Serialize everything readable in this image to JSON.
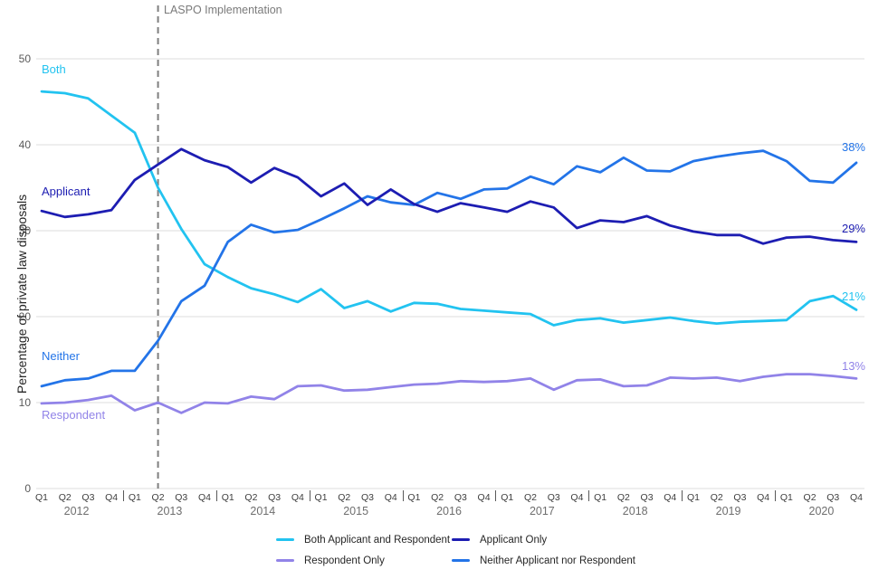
{
  "annotation": {
    "label": "LASPO Implementation"
  },
  "colors": {
    "both": "#22c3f0",
    "applicant": "#1d1db2",
    "respondent": "#9183e8",
    "neither": "#2374e8",
    "grid": "#dcdcdc",
    "dashed_line": "#7f7f7f"
  },
  "y_axis": {
    "title": "Percentage of private law disposals",
    "ticks": [
      0,
      10,
      20,
      30,
      40,
      50
    ]
  },
  "x_axis": {
    "years": [
      "2012",
      "2013",
      "2014",
      "2015",
      "2016",
      "2017",
      "2018",
      "2019",
      "2020"
    ]
  },
  "series_labels": {
    "both": "Both",
    "applicant": "Applicant",
    "neither": "Neither",
    "respondent": "Respondent"
  },
  "end_labels": {
    "neither": "38%",
    "applicant": "29%",
    "both": "21%",
    "respondent": "13%"
  },
  "legend": {
    "rows": 2,
    "columns": 2
  },
  "chart_data": {
    "type": "line",
    "title": "",
    "xlabel": "",
    "ylabel": "Percentage of private law disposals",
    "ylim": [
      0,
      50
    ],
    "grid": "horizontal",
    "legend_position": "bottom",
    "annotation": {
      "label": "LASPO Implementation",
      "x": "Q2 2013"
    },
    "x_categories": [
      "Q1 2012",
      "Q2 2012",
      "Q3 2012",
      "Q4 2012",
      "Q1 2013",
      "Q2 2013",
      "Q3 2013",
      "Q4 2013",
      "Q1 2014",
      "Q2 2014",
      "Q3 2014",
      "Q4 2014",
      "Q1 2015",
      "Q2 2015",
      "Q3 2015",
      "Q4 2015",
      "Q1 2016",
      "Q2 2016",
      "Q3 2016",
      "Q4 2016",
      "Q1 2017",
      "Q2 2017",
      "Q3 2017",
      "Q4 2017",
      "Q1 2018",
      "Q2 2018",
      "Q3 2018",
      "Q4 2018",
      "Q1 2019",
      "Q2 2019",
      "Q3 2019",
      "Q4 2019",
      "Q1 2020",
      "Q2 2020",
      "Q3 2020",
      "Q4 2020"
    ],
    "series": [
      {
        "key": "both",
        "label": "Both Applicant and Respondent",
        "values": [
          46.2,
          46.0,
          45.4,
          43.4,
          41.4,
          35.0,
          30.2,
          26.1,
          24.6,
          23.3,
          22.6,
          21.7,
          23.2,
          21.0,
          21.8,
          20.6,
          21.6,
          21.5,
          20.9,
          20.7,
          20.5,
          20.3,
          19.0,
          19.6,
          19.8,
          19.3,
          19.6,
          19.9,
          19.5,
          19.2,
          19.4,
          19.5,
          19.6,
          21.8,
          22.4,
          20.8
        ]
      },
      {
        "key": "applicant",
        "label": "Applicant Only",
        "values": [
          32.3,
          31.6,
          31.9,
          32.4,
          35.9,
          37.7,
          39.5,
          38.2,
          37.4,
          35.6,
          37.3,
          36.2,
          34.0,
          35.5,
          33.0,
          34.8,
          33.1,
          32.2,
          33.2,
          32.7,
          32.2,
          33.4,
          32.7,
          30.3,
          31.2,
          31.0,
          31.7,
          30.6,
          29.9,
          29.5,
          29.5,
          28.5,
          29.2,
          29.3,
          28.9,
          28.7
        ]
      },
      {
        "key": "respondent",
        "label": "Respondent Only",
        "values": [
          9.9,
          10.0,
          10.3,
          10.8,
          9.1,
          10.0,
          8.8,
          10.0,
          9.9,
          10.7,
          10.4,
          11.9,
          12.0,
          11.4,
          11.5,
          11.8,
          12.1,
          12.2,
          12.5,
          12.4,
          12.5,
          12.8,
          11.5,
          12.6,
          12.7,
          11.9,
          12.0,
          12.9,
          12.8,
          12.9,
          12.5,
          13.0,
          13.3,
          13.3,
          13.1,
          12.8
        ]
      },
      {
        "key": "neither",
        "label": "Neither Applicant nor Respondent",
        "values": [
          11.9,
          12.6,
          12.8,
          13.7,
          13.7,
          17.2,
          21.8,
          23.6,
          28.7,
          30.7,
          29.8,
          30.1,
          31.3,
          32.6,
          34.0,
          33.3,
          33.0,
          34.4,
          33.7,
          34.8,
          34.9,
          36.3,
          35.4,
          37.5,
          36.8,
          38.5,
          37.0,
          36.9,
          38.1,
          38.6,
          39.0,
          39.3,
          38.1,
          35.8,
          35.6,
          37.9
        ]
      }
    ]
  }
}
